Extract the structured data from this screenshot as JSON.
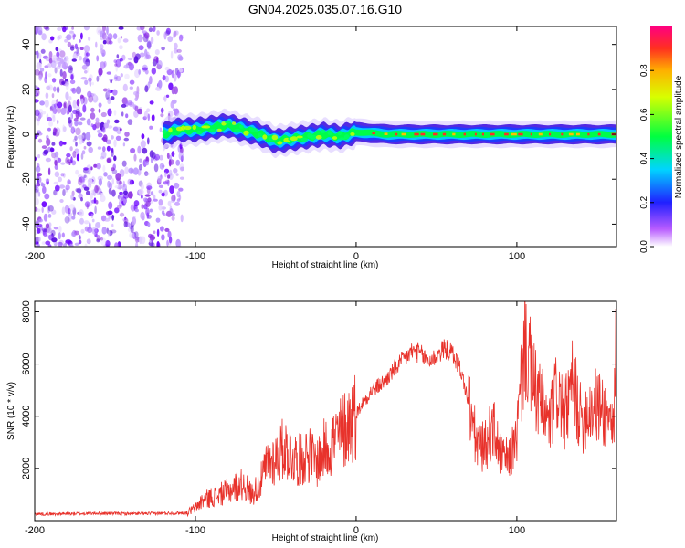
{
  "title": "GN04.2025.035.07.16.G10",
  "colors": {
    "line": "#e8322b",
    "band_low": "#7a1ee0",
    "band_high": "#00ff00",
    "band_peak": "#ff2a2a"
  },
  "chart_data": [
    {
      "type": "heatmap",
      "xlabel": "Height of straight line (km)",
      "ylabel": "Frequency (Hz)",
      "xlim": [
        -200,
        162
      ],
      "ylim": [
        -50,
        48
      ],
      "x_ticks": [
        "-200",
        "-100",
        "0",
        "100"
      ],
      "x_tick_values": [
        -200,
        -100,
        0,
        100
      ],
      "y_ticks": [
        "40",
        "20",
        "0",
        "-20",
        "-40"
      ],
      "y_tick_values": [
        40,
        20,
        0,
        -20,
        -40
      ],
      "noise_region_x": [
        -200,
        -108
      ],
      "signal_start_x": -120,
      "signal_track": {
        "x": [
          -120,
          -110,
          -100,
          -90,
          -80,
          -70,
          -60,
          -50,
          -40,
          -30,
          -20,
          -10,
          0,
          20,
          40,
          60,
          80,
          100,
          120,
          140,
          162
        ],
        "y": [
          0,
          2,
          2,
          3,
          4,
          2,
          0,
          -3,
          -2,
          -1,
          0,
          -1,
          1,
          0,
          0,
          0,
          0,
          0,
          0,
          0,
          0
        ]
      },
      "colorbar": {
        "label": "Normalized spectral amplitude",
        "ticks": [
          "0.0",
          "0.2",
          "0.4",
          "0.6",
          "0.8"
        ],
        "tick_values": [
          0.0,
          0.2,
          0.4,
          0.6,
          0.8
        ],
        "range": [
          0,
          1
        ]
      }
    },
    {
      "type": "line",
      "xlabel": "Height of straight line (km)",
      "ylabel": "SNR (10 * v/v)",
      "xlim": [
        -200,
        162
      ],
      "ylim": [
        0,
        8400
      ],
      "x_ticks": [
        "-200",
        "-100",
        "0",
        "100"
      ],
      "x_tick_values": [
        -200,
        -100,
        0,
        100
      ],
      "y_ticks": [
        "2000",
        "4000",
        "6000",
        "8000"
      ],
      "y_tick_values": [
        2000,
        4000,
        6000,
        8000
      ],
      "series": [
        {
          "x": [
            -200,
            -180,
            -160,
            -140,
            -120,
            -105,
            -100,
            -95,
            -90,
            -85,
            -80,
            -75,
            -70,
            -65,
            -60,
            -55,
            -50,
            -45,
            -40,
            -35,
            -30,
            -25,
            -20,
            -15,
            -10,
            -5,
            0,
            5,
            10,
            15,
            20,
            25,
            30,
            35,
            40,
            45,
            50,
            55,
            60,
            65,
            70,
            75,
            80,
            85,
            90,
            95,
            100,
            105,
            110,
            115,
            120,
            125,
            130,
            135,
            140,
            145,
            150,
            155,
            160,
            162
          ],
          "values": [
            250,
            260,
            280,
            260,
            280,
            300,
            500,
            800,
            900,
            1000,
            1100,
            1300,
            1400,
            1000,
            1400,
            2200,
            2400,
            2800,
            2500,
            2300,
            2600,
            2200,
            2700,
            3000,
            3300,
            3700,
            4100,
            4600,
            5000,
            5200,
            5500,
            5900,
            6200,
            6500,
            6400,
            6100,
            6300,
            6600,
            6400,
            5800,
            4500,
            2900,
            2800,
            3600,
            2500,
            2300,
            3200,
            7000,
            5200,
            4500,
            3600,
            5000,
            4000,
            5300,
            3800,
            4300,
            4400,
            4100,
            3700,
            6800
          ]
        }
      ]
    }
  ]
}
